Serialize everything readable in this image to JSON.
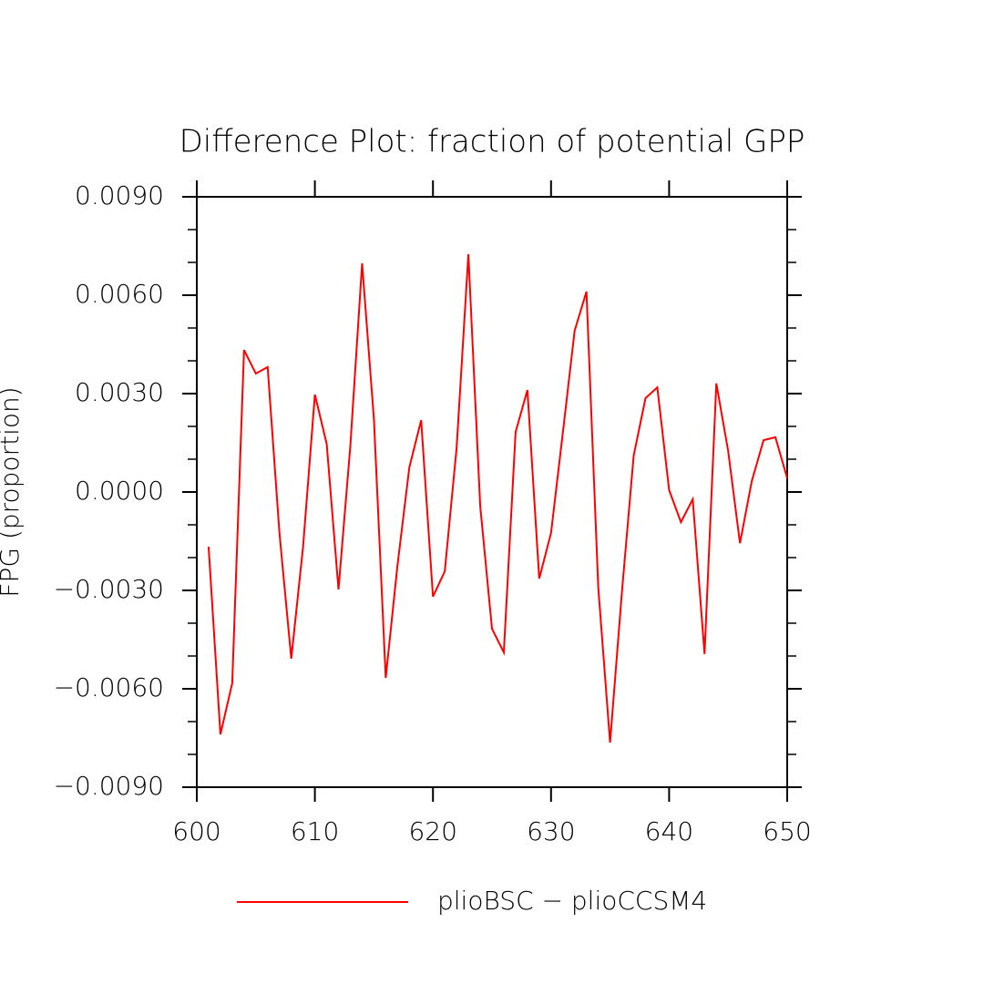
{
  "chart_data": {
    "type": "line",
    "title": "Difference Plot: fraction of potential GPP",
    "y_label": "FPG  (proportion)",
    "x": [
      601,
      602,
      603,
      604,
      605,
      606,
      607,
      608,
      609,
      610,
      611,
      612,
      613,
      614,
      615,
      616,
      617,
      618,
      619,
      620,
      621,
      622,
      623,
      624,
      625,
      626,
      627,
      628,
      629,
      630,
      631,
      632,
      633,
      634,
      635,
      636,
      637,
      638,
      639,
      640,
      641,
      642,
      643,
      644,
      645,
      646,
      647,
      648,
      649,
      650
    ],
    "series": [
      {
        "name": "plioBSC − plioCCSM4",
        "color": "#ff0000",
        "values": [
          -0.00167,
          -0.00739,
          -0.00583,
          0.00433,
          0.00361,
          0.00381,
          -0.00125,
          -0.00508,
          -0.00167,
          0.00297,
          0.00147,
          -0.00297,
          0.00139,
          0.00697,
          0.00222,
          -0.00567,
          -0.00222,
          0.00075,
          0.00219,
          -0.00319,
          -0.00242,
          0.00133,
          0.00725,
          -0.00042,
          -0.00417,
          -0.00489,
          0.00183,
          0.00311,
          -0.00264,
          -0.00125,
          0.00181,
          0.00492,
          0.00611,
          -0.00292,
          -0.00764,
          -0.00306,
          0.00111,
          0.00286,
          0.00319,
          6e-05,
          -0.00092,
          -0.00022,
          -0.00494,
          0.00331,
          0.00125,
          -0.00156,
          0.00033,
          0.00158,
          0.00167,
          0.00042
        ]
      }
    ],
    "xlim": [
      600,
      650
    ],
    "xticks": [
      600,
      610,
      620,
      630,
      640,
      650
    ],
    "ylim": [
      -0.009,
      0.009
    ],
    "yticks": [
      {
        "value": -0.009,
        "label": "−0.0090"
      },
      {
        "value": -0.006,
        "label": "−0.0060"
      },
      {
        "value": -0.003,
        "label": "−0.0030"
      },
      {
        "value": 0,
        "label": "0.0000"
      },
      {
        "value": 0.003,
        "label": "0.0030"
      },
      {
        "value": 0.006,
        "label": "0.0060"
      },
      {
        "value": 0.009,
        "label": "0.0090"
      }
    ]
  }
}
